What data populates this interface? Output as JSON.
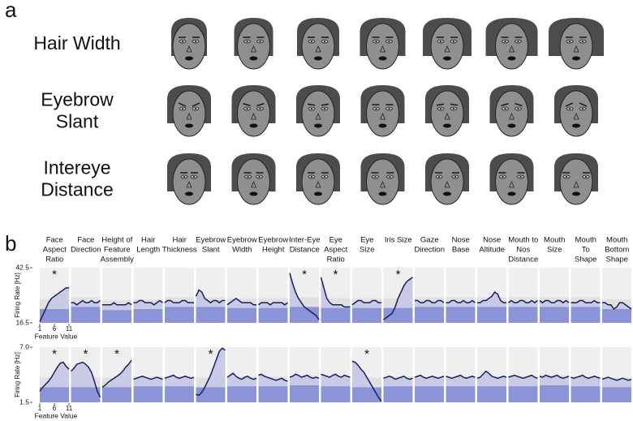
{
  "panel_a": {
    "label": "a",
    "rows": [
      {
        "label_lines": [
          "Hair Width"
        ]
      },
      {
        "label_lines": [
          "Eyebrow",
          "Slant"
        ]
      },
      {
        "label_lines": [
          "Intereye",
          "Distance"
        ]
      }
    ]
  },
  "panel_b": {
    "label": "b",
    "y_label": "Firing Rate [Hz]",
    "x_label": "Feature Value",
    "x": [
      1,
      2,
      3,
      4,
      5,
      6,
      7,
      8,
      9,
      10,
      11
    ],
    "xlim": [
      1,
      11
    ],
    "xticks": [
      1,
      6,
      11
    ],
    "axes": [
      {
        "ylim": [
          16.5,
          42.5
        ],
        "yticks": [
          16.5,
          42.5
        ]
      },
      {
        "ylim": [
          1.5,
          7
        ],
        "yticks": [
          1.5,
          {
            "value": 7,
            "label": "7.0"
          }
        ]
      }
    ],
    "features": [
      {
        "name_lines": [
          "Face",
          "Aspect",
          "Ratio"
        ],
        "cells": [
          {
            "values": [
              17,
              20,
              23,
              26,
              28,
              29,
              30,
              31,
              32,
              33,
              33
            ],
            "baseline": 23,
            "star": "*"
          },
          {
            "values": [
              2.6,
              3.0,
              3.3,
              3.6,
              4.0,
              4.5,
              5.0,
              5.4,
              5.5,
              5.1,
              4.8
            ],
            "baseline": 3,
            "star": "*"
          }
        ]
      },
      {
        "name_lines": [
          "Face",
          "Direction"
        ],
        "cells": [
          {
            "values": [
              26,
              26,
              25,
              26,
              27,
              26,
              26,
              27,
              26,
              26,
              27
            ],
            "baseline": 24
          },
          {
            "values": [
              4.6,
              4.9,
              5.3,
              5.4,
              5.5,
              5.3,
              5.0,
              4.5,
              3.6,
              2.6,
              2.0
            ],
            "baseline": 3,
            "star": "*"
          }
        ]
      },
      {
        "name_lines": [
          "Height of",
          "Feature",
          "Assembly"
        ],
        "cells": [
          {
            "values": [
              25,
              25,
              25,
              25,
              26,
              25,
              25,
              25,
              25,
              26,
              25
            ],
            "baseline": 22.5
          },
          {
            "values": [
              3.0,
              3.2,
              3.5,
              3.7,
              3.9,
              4.1,
              4.3,
              4.6,
              5.0,
              5.3,
              5.7
            ],
            "baseline": 3,
            "star": "*"
          }
        ]
      },
      {
        "name_lines": [
          "Hair",
          "Length"
        ],
        "cells": [
          {
            "values": [
              26,
              26,
              27,
              27,
              26,
              26,
              26,
              25,
              26,
              27,
              26
            ],
            "baseline": 23
          },
          {
            "values": [
              3.8,
              3.9,
              4.0,
              4.1,
              4.0,
              3.9,
              3.8,
              3.9,
              4.0,
              3.9,
              3.8
            ],
            "baseline": 3.1
          }
        ]
      },
      {
        "name_lines": [
          "Hair",
          "Thickness"
        ],
        "cells": [
          {
            "values": [
              26,
              27,
              27,
              26,
              26,
              26,
              27,
              27,
              26,
              26,
              26
            ],
            "baseline": 24
          },
          {
            "values": [
              3.9,
              4.0,
              4.1,
              4.2,
              4.0,
              3.9,
              4.0,
              4.1,
              4.0,
              3.9,
              4.0
            ],
            "baseline": 3.1
          }
        ]
      },
      {
        "name_lines": [
          "Eyebrow",
          "Slant"
        ],
        "cells": [
          {
            "values": [
              29,
              32,
              31,
              28,
              27,
              26,
              27,
              27,
              26,
              27,
              27
            ],
            "baseline": 24
          },
          {
            "values": [
              2.3,
              2.2,
              2.5,
              3.0,
              3.6,
              4.2,
              5.0,
              5.8,
              6.6,
              6.9,
              6.7
            ],
            "baseline": 3,
            "star": "*"
          }
        ]
      },
      {
        "name_lines": [
          "Eyebrow",
          "Width"
        ],
        "cells": [
          {
            "values": [
              25,
              26,
              27,
              28,
              27,
              26,
              26,
              26,
              26,
              25,
              25
            ],
            "baseline": 23.5
          },
          {
            "values": [
              4.0,
              4.2,
              4.4,
              4.1,
              3.9,
              3.8,
              4.0,
              4.1,
              3.9,
              3.8,
              3.9
            ],
            "baseline": 3.1
          }
        ]
      },
      {
        "name_lines": [
          "Eyebrow",
          "Height"
        ],
        "cells": [
          {
            "values": [
              25,
              26,
              26,
              26,
              25,
              26,
              26,
              26,
              26,
              25,
              26
            ],
            "baseline": 23.5
          },
          {
            "values": [
              4.2,
              4.3,
              4.1,
              4.0,
              3.9,
              3.8,
              3.7,
              3.8,
              3.9,
              3.7,
              3.6
            ],
            "baseline": 3.1
          }
        ]
      },
      {
        "name_lines": [
          "Inter-Eye",
          "Distance"
        ],
        "cells": [
          {
            "values": [
              40,
              35,
              31,
              28,
              26,
              24,
              23,
              22,
              21,
              20,
              18
            ],
            "baseline": 24,
            "star": "*"
          },
          {
            "values": [
              4.0,
              4.1,
              4.3,
              4.2,
              4.0,
              4.1,
              4.2,
              4.0,
              3.9,
              4.0,
              3.9
            ],
            "baseline": 3.2
          }
        ]
      },
      {
        "name_lines": [
          "Eye",
          "Aspect",
          "Ratio"
        ],
        "cells": [
          {
            "values": [
              38,
              33,
              28,
              26,
              25,
              25,
              25,
              25,
              24,
              24,
              24
            ],
            "baseline": 23.5,
            "star": "*"
          },
          {
            "values": [
              4.3,
              4.2,
              4.1,
              4.0,
              4.2,
              4.3,
              4.1,
              4.0,
              4.2,
              4.1,
              4.0
            ],
            "baseline": 3.1
          }
        ]
      },
      {
        "name_lines": [
          "Eye",
          "Size"
        ],
        "cells": [
          {
            "values": [
              25,
              26,
              27,
              27,
              26,
              26,
              26,
              27,
              27,
              26,
              26
            ],
            "baseline": 23.5
          },
          {
            "values": [
              5.6,
              5.5,
              5.2,
              4.8,
              4.5,
              4.0,
              3.5,
              3.0,
              2.5,
              2.0,
              1.6
            ],
            "baseline": 3,
            "star": "*"
          }
        ]
      },
      {
        "name_lines": [
          "Iris Size"
        ],
        "cells": [
          {
            "values": [
              18,
              19,
              20,
              21,
              24,
              28,
              31,
              34,
              36,
              37,
              38
            ],
            "baseline": 23.5,
            "star": "*"
          },
          {
            "values": [
              3.9,
              4.0,
              4.1,
              4.0,
              3.8,
              3.9,
              4.0,
              4.1,
              3.9,
              3.8,
              3.9
            ],
            "baseline": 3.1
          }
        ]
      },
      {
        "name_lines": [
          "Gaze",
          "Direction"
        ],
        "cells": [
          {
            "values": [
              27,
              27,
              26,
              26,
              27,
              27,
              26,
              26,
              27,
              27,
              26
            ],
            "baseline": 24
          },
          {
            "values": [
              4.0,
              4.1,
              4.2,
              4.0,
              3.9,
              4.0,
              4.1,
              4.0,
              3.9,
              4.0,
              4.1
            ],
            "baseline": 3.1
          }
        ]
      },
      {
        "name_lines": [
          "Nose",
          "Base"
        ],
        "cells": [
          {
            "values": [
              26,
              26,
              27,
              27,
              26,
              26,
              27,
              26,
              26,
              27,
              26
            ],
            "baseline": 24
          },
          {
            "values": [
              4.1,
              4.0,
              3.9,
              4.0,
              4.1,
              4.2,
              4.0,
              3.9,
              4.0,
              4.1,
              4.0
            ],
            "baseline": 3.1
          }
        ]
      },
      {
        "name_lines": [
          "Nose",
          "Altitude"
        ],
        "cells": [
          {
            "values": [
              26,
              26,
              27,
              27,
              28,
              29,
              31,
              30,
              27,
              26,
              26
            ],
            "baseline": 24
          },
          {
            "values": [
              3.9,
              4.0,
              4.3,
              4.6,
              4.4,
              4.1,
              4.0,
              3.9,
              4.0,
              4.1,
              4.0
            ],
            "baseline": 3.1
          }
        ]
      },
      {
        "name_lines": [
          "Mouth to",
          "Nos",
          "Distance"
        ],
        "cells": [
          {
            "values": [
              26,
              27,
              26,
              26,
              27,
              27,
              26,
              26,
              27,
              26,
              27
            ],
            "baseline": 24
          },
          {
            "values": [
              4.0,
              4.1,
              4.2,
              4.1,
              4.0,
              3.9,
              4.0,
              4.1,
              4.2,
              4.0,
              3.9
            ],
            "baseline": 3.1
          }
        ]
      },
      {
        "name_lines": [
          "Mouth",
          "Size"
        ],
        "cells": [
          {
            "values": [
              27,
              26,
              27,
              27,
              26,
              26,
              27,
              27,
              26,
              27,
              26
            ],
            "baseline": 24
          },
          {
            "values": [
              4.1,
              4.0,
              4.2,
              4.1,
              4.0,
              4.1,
              4.2,
              4.0,
              3.9,
              4.0,
              4.1
            ],
            "baseline": 3.2
          }
        ]
      },
      {
        "name_lines": [
          "Mouth",
          "To",
          "Shape"
        ],
        "cells": [
          {
            "values": [
              26,
              26,
              26,
              27,
              27,
              26,
              26,
              26,
              27,
              26,
              26
            ],
            "baseline": 24
          },
          {
            "values": [
              4.0,
              3.9,
              4.0,
              4.1,
              4.2,
              4.0,
              3.9,
              4.0,
              4.1,
              4.0,
              3.9
            ],
            "baseline": 3.1
          }
        ]
      },
      {
        "name_lines": [
          "Mouth",
          "Bottom",
          "Shape"
        ],
        "cells": [
          {
            "values": [
              26,
              26,
              25,
              25,
              23,
              24,
              26,
              26,
              25,
              24,
              23
            ],
            "baseline": 23
          },
          {
            "values": [
              3.8,
              3.9,
              4.0,
              3.9,
              3.8,
              3.7,
              3.8,
              3.9,
              3.8,
              3.7,
              3.8
            ],
            "baseline": 3
          }
        ]
      }
    ]
  }
}
